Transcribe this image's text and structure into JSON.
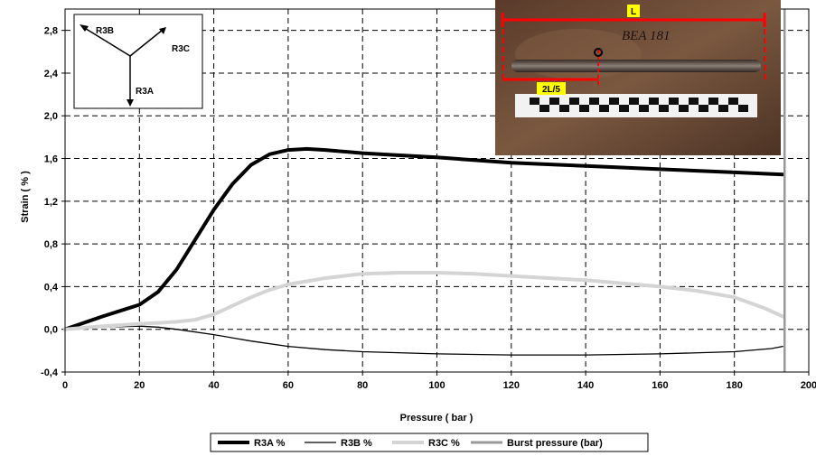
{
  "chart_data": {
    "type": "line",
    "xlabel": "Pressure ( bar )",
    "ylabel": "Strain ( % )",
    "xlim": [
      0,
      200
    ],
    "ylim": [
      -0.4,
      3.0
    ],
    "x_ticks": [
      "0",
      "20",
      "40",
      "60",
      "80",
      "100",
      "120",
      "140",
      "160",
      "180",
      "200"
    ],
    "y_ticks": [
      "-0,4",
      "0,0",
      "0,4",
      "0,8",
      "1,2",
      "1,6",
      "2,0",
      "2,4",
      "2,8"
    ],
    "grid": true,
    "legend_position": "bottom",
    "series": [
      {
        "name": "R3A %",
        "color": "#000000",
        "points": [
          [
            0,
            0.0
          ],
          [
            10,
            0.12
          ],
          [
            20,
            0.23
          ],
          [
            25,
            0.35
          ],
          [
            30,
            0.56
          ],
          [
            35,
            0.84
          ],
          [
            40,
            1.12
          ],
          [
            45,
            1.36
          ],
          [
            50,
            1.54
          ],
          [
            55,
            1.64
          ],
          [
            60,
            1.68
          ],
          [
            65,
            1.69
          ],
          [
            70,
            1.68
          ],
          [
            80,
            1.65
          ],
          [
            90,
            1.63
          ],
          [
            100,
            1.61
          ],
          [
            120,
            1.56
          ],
          [
            140,
            1.53
          ],
          [
            160,
            1.5
          ],
          [
            180,
            1.47
          ],
          [
            193,
            1.45
          ]
        ]
      },
      {
        "name": "R3B %",
        "color": "#000000",
        "points": [
          [
            0,
            0.0
          ],
          [
            10,
            0.02
          ],
          [
            20,
            0.03
          ],
          [
            25,
            0.02
          ],
          [
            30,
            0.0
          ],
          [
            40,
            -0.05
          ],
          [
            50,
            -0.11
          ],
          [
            60,
            -0.16
          ],
          [
            70,
            -0.19
          ],
          [
            80,
            -0.21
          ],
          [
            100,
            -0.23
          ],
          [
            120,
            -0.24
          ],
          [
            140,
            -0.24
          ],
          [
            160,
            -0.23
          ],
          [
            180,
            -0.21
          ],
          [
            190,
            -0.18
          ],
          [
            193,
            -0.16
          ]
        ]
      },
      {
        "name": "R3C %",
        "color": "#d4d4d4",
        "points": [
          [
            0,
            0.0
          ],
          [
            10,
            0.03
          ],
          [
            20,
            0.05
          ],
          [
            25,
            0.06
          ],
          [
            30,
            0.07
          ],
          [
            35,
            0.09
          ],
          [
            40,
            0.14
          ],
          [
            45,
            0.22
          ],
          [
            50,
            0.3
          ],
          [
            55,
            0.37
          ],
          [
            60,
            0.42
          ],
          [
            70,
            0.48
          ],
          [
            80,
            0.52
          ],
          [
            90,
            0.53
          ],
          [
            100,
            0.53
          ],
          [
            110,
            0.52
          ],
          [
            120,
            0.5
          ],
          [
            130,
            0.48
          ],
          [
            140,
            0.46
          ],
          [
            150,
            0.43
          ],
          [
            160,
            0.4
          ],
          [
            170,
            0.36
          ],
          [
            180,
            0.3
          ],
          [
            188,
            0.2
          ],
          [
            193,
            0.12
          ]
        ]
      },
      {
        "name": "Burst pressure (bar)",
        "color": "#999999",
        "x": 193.5
      }
    ]
  },
  "inset_directions": {
    "labels": [
      "R3B",
      "R3C",
      "R3A"
    ]
  },
  "photo": {
    "label_L": "L",
    "label_2L5": "2L/5",
    "engraving": "BEA 181"
  }
}
